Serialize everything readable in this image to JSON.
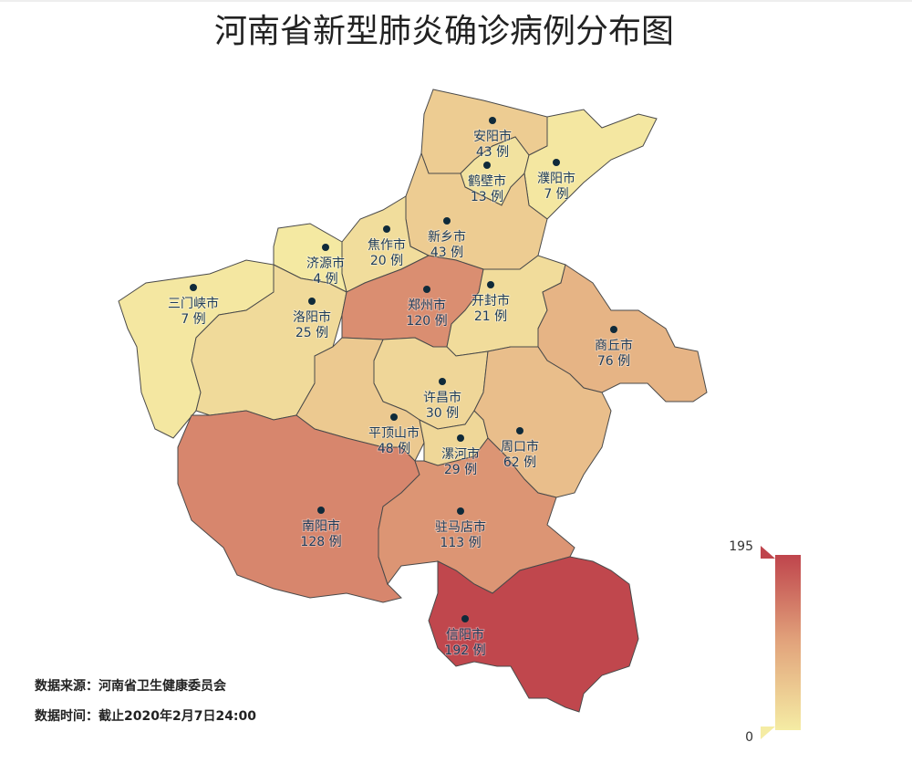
{
  "chart_data": {
    "type": "map",
    "title": "河南省新型肺炎确诊病例分布图",
    "categories": [
      "安阳市",
      "鹤壁市",
      "濮阳市",
      "新乡市",
      "焦作市",
      "济源市",
      "三门峡市",
      "洛阳市",
      "郑州市",
      "开封市",
      "商丘市",
      "许昌市",
      "平顶山市",
      "漯河市",
      "周口市",
      "南阳市",
      "驻马店市",
      "信阳市"
    ],
    "values": [
      43,
      13,
      7,
      43,
      20,
      4,
      7,
      25,
      120,
      21,
      76,
      30,
      48,
      29,
      62,
      128,
      113,
      192
    ],
    "value_labels": [
      "43 例",
      "13 例",
      "7 例",
      "43 例",
      "20 例",
      "4 例",
      "7 例",
      "25 例",
      "120 例",
      "21 例",
      "76 例",
      "30 例",
      "48 例",
      "29 例",
      "62 例",
      "128 例",
      "113 例",
      "192 例"
    ],
    "visual_range": [
      0,
      195
    ],
    "range_colors": [
      "#f5eca4",
      "#e2a47c",
      "#bf444c"
    ],
    "notes": [
      "数据来源：河南省卫生健康委员会",
      "数据时间：截止2020年2月7日24:00"
    ]
  }
}
